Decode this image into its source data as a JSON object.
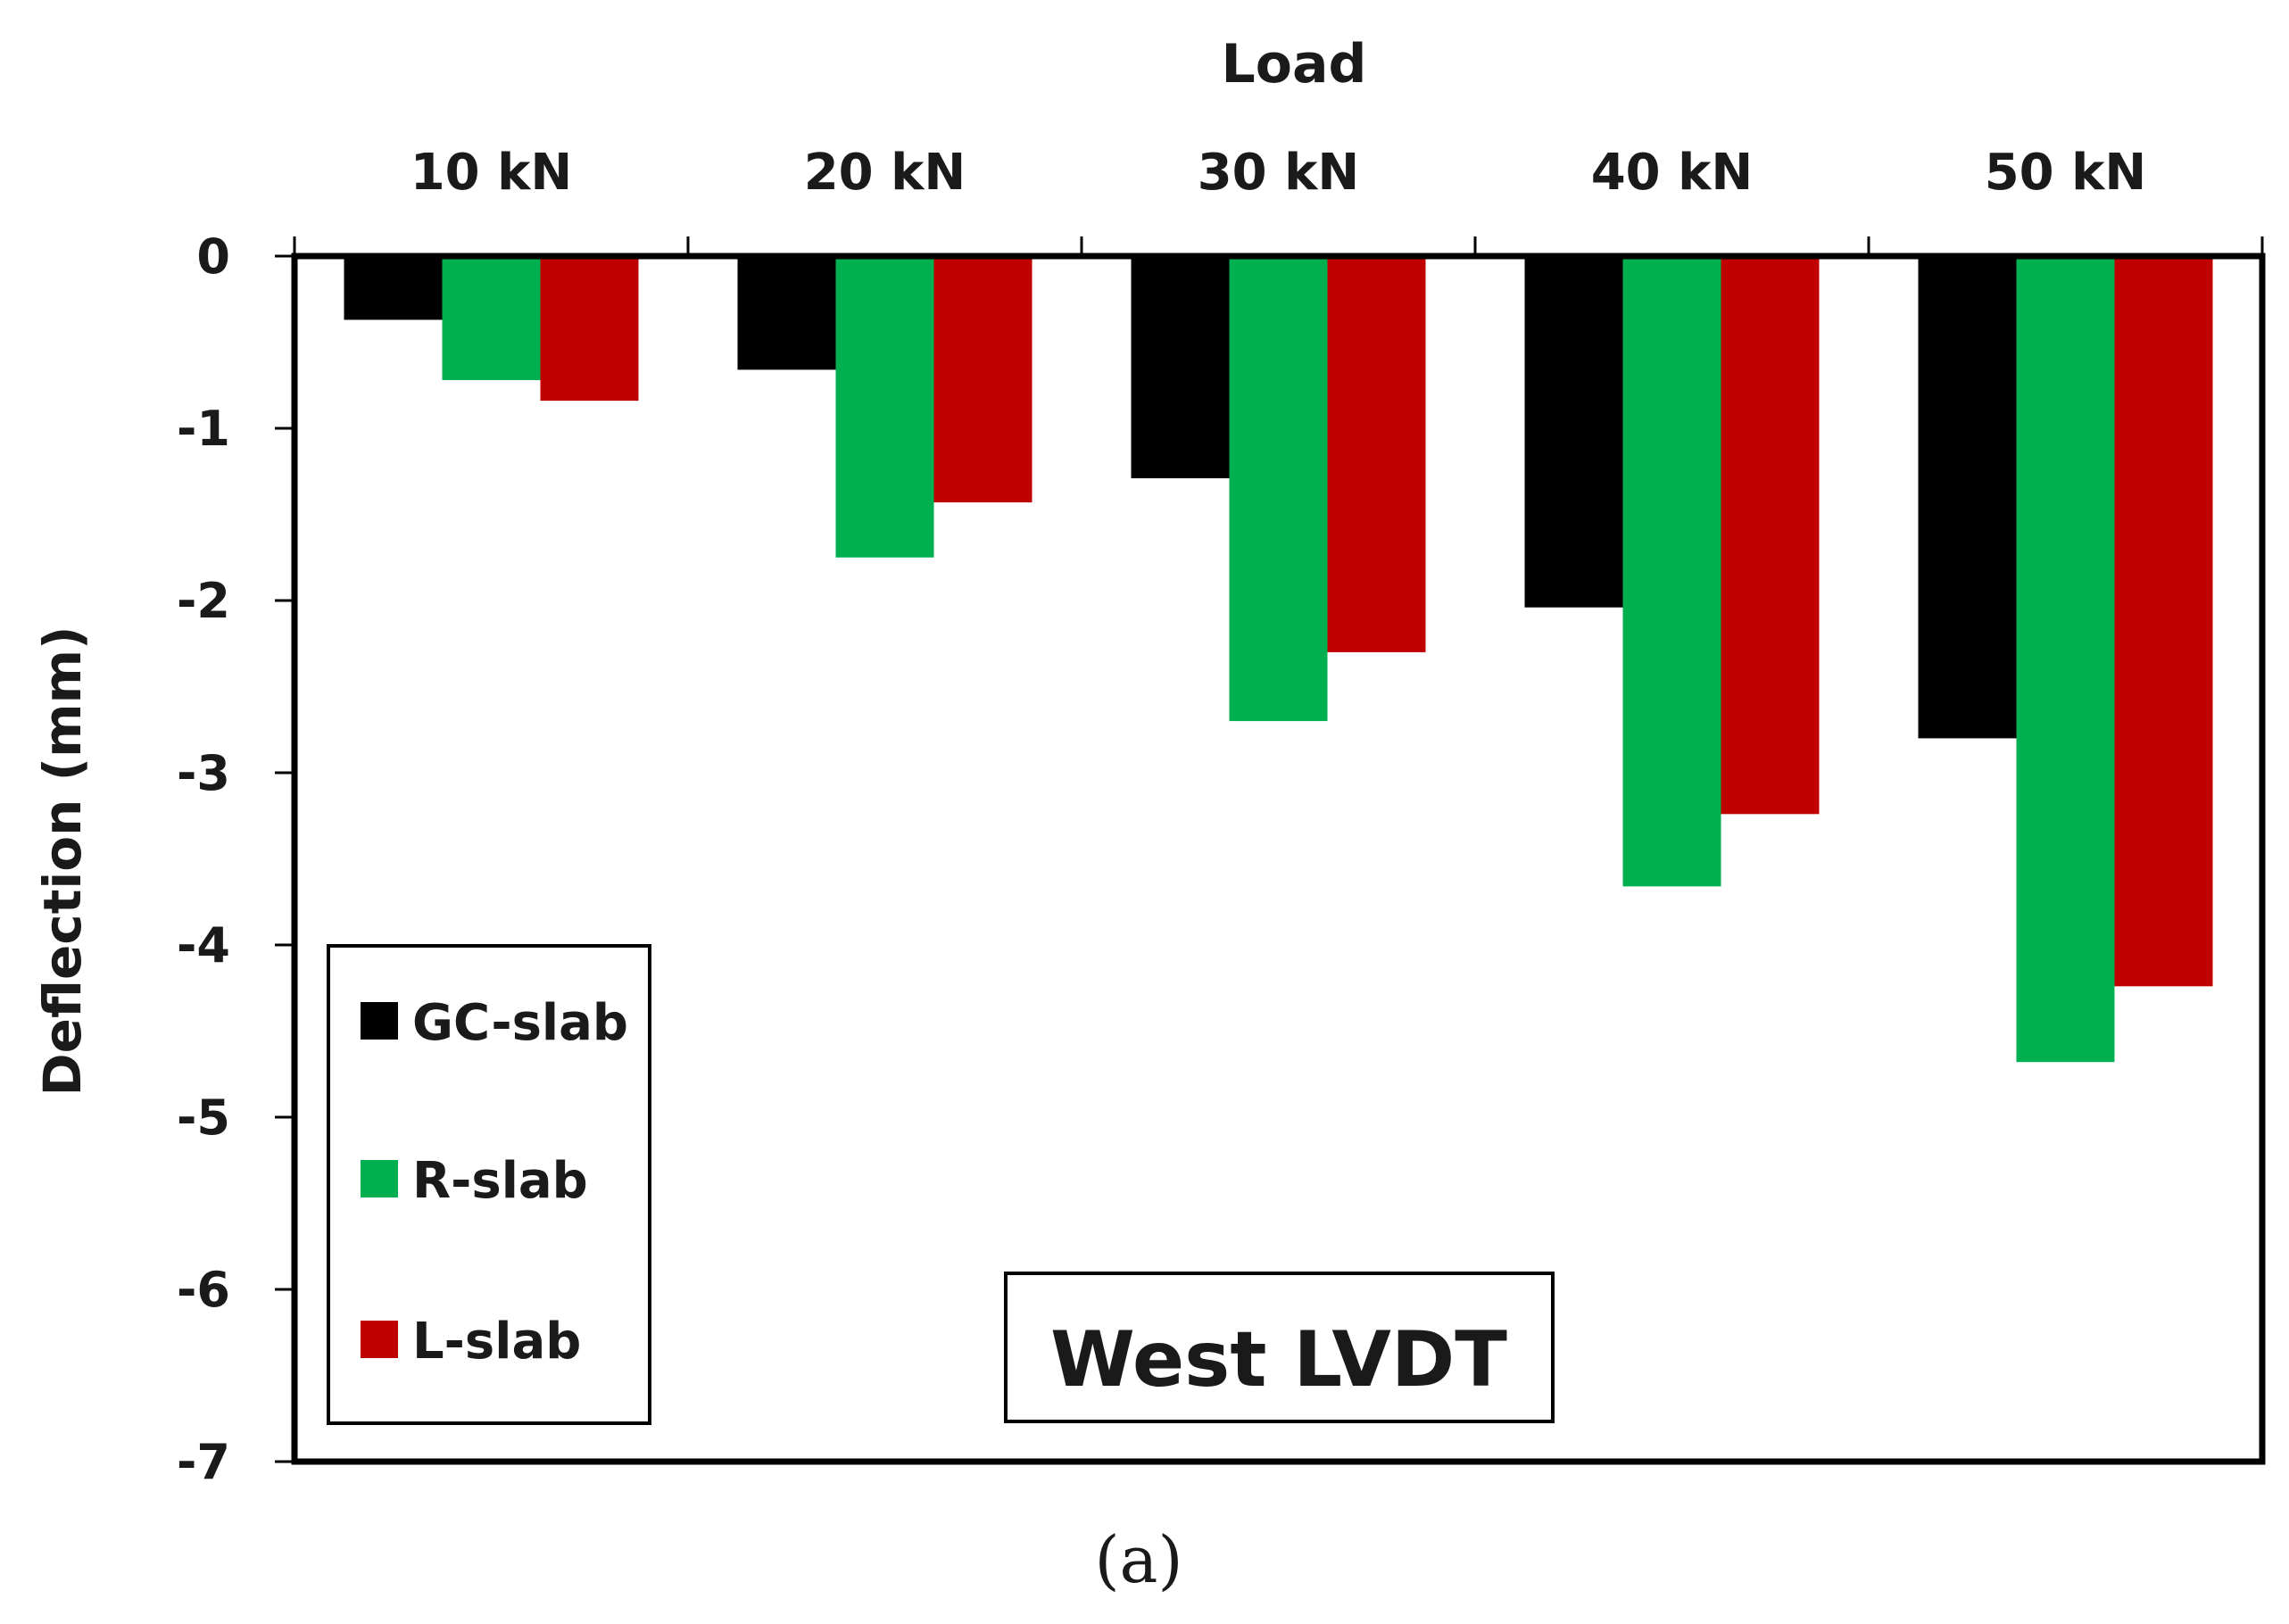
{
  "chart_data": {
    "type": "bar",
    "title": "Load",
    "annotation": "West LVDT",
    "caption": "(a)",
    "xlabel": "Load",
    "ylabel": "Deflection (mm)",
    "categories": [
      "10 kN",
      "20 kN",
      "30 kN",
      "40 kN",
      "50 kN"
    ],
    "ylim": [
      -7,
      0
    ],
    "yticks": [
      0,
      -1,
      -2,
      -3,
      -4,
      -5,
      -6,
      -7
    ],
    "ytick_labels": [
      "0",
      "-1",
      "-2",
      "-3",
      "-4",
      "-5",
      "-6",
      "-7"
    ],
    "grid": false,
    "legend_position": "bottom-left",
    "series": [
      {
        "name": "GC-slab",
        "color": "#000000",
        "values": [
          -0.37,
          -0.66,
          -1.29,
          -2.04,
          -2.8
        ]
      },
      {
        "name": "R-slab",
        "color": "#00b050",
        "values": [
          -0.72,
          -1.75,
          -2.7,
          -3.66,
          -4.68
        ]
      },
      {
        "name": "L-slab",
        "color": "#c00000",
        "values": [
          -0.84,
          -1.43,
          -2.3,
          -3.24,
          -4.24
        ]
      }
    ]
  }
}
